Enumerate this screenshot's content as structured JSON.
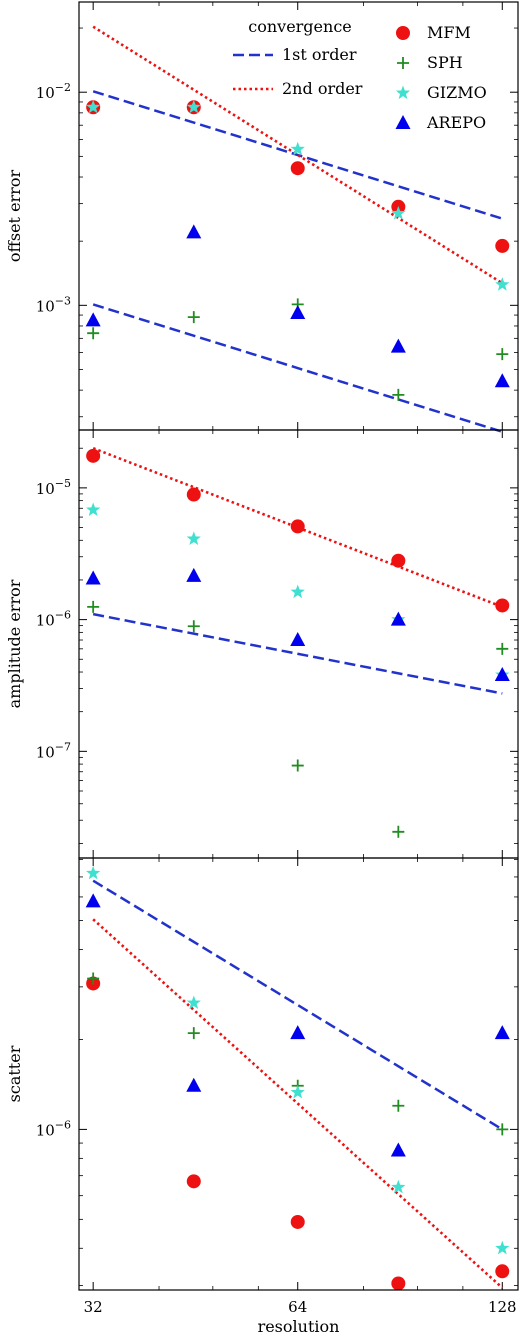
{
  "chart_data": [
    {
      "type": "scatter",
      "panel": "top",
      "ylabel": "offset error",
      "yscale": "log",
      "ylim": [
        0.00026,
        0.0265
      ],
      "xscale": "log2",
      "xlim": [
        30.5,
        135
      ],
      "ytick_labels": [
        {
          "value": 0.01,
          "base": "10",
          "exp": "−2"
        },
        {
          "value": 0.001,
          "base": "10",
          "exp": "−3"
        }
      ],
      "series": [
        {
          "name": "MFM",
          "marker": "circle",
          "color": "#ee1111",
          "points": [
            [
              32,
              0.0085
            ],
            [
              45,
              0.0085
            ],
            [
              64,
              0.0044
            ],
            [
              90,
              0.0029
            ],
            [
              128,
              0.0019
            ]
          ]
        },
        {
          "name": "SPH",
          "marker": "plus",
          "color": "#228b22",
          "points": [
            [
              32,
              0.00074
            ],
            [
              45,
              0.00088
            ],
            [
              64,
              0.00101
            ],
            [
              90,
              0.00038
            ],
            [
              128,
              0.00059
            ]
          ]
        },
        {
          "name": "GIZMO",
          "marker": "star",
          "color": "#40e0d0",
          "points": [
            [
              32,
              0.0085
            ],
            [
              45,
              0.0085
            ],
            [
              64,
              0.0054
            ],
            [
              90,
              0.0027
            ],
            [
              128,
              0.00125
            ]
          ]
        },
        {
          "name": "AREPO",
          "marker": "triangle",
          "color": "#0000ee",
          "points": [
            [
              32,
              0.00085
            ],
            [
              45,
              0.0022
            ],
            [
              64,
              0.00092
            ],
            [
              90,
              0.00064
            ],
            [
              128,
              0.00044
            ]
          ]
        }
      ],
      "lines": [
        {
          "kind": "1st order",
          "style": "dashed",
          "color": "#2233cc",
          "points": [
            [
              32,
              0.0101
            ],
            [
              128,
              0.00255
            ]
          ]
        },
        {
          "kind": "1st order",
          "style": "dashed",
          "color": "#2233cc",
          "points": [
            [
              32,
              0.00101
            ],
            [
              128,
              0.000255
            ]
          ]
        },
        {
          "kind": "2nd order",
          "style": "dotted",
          "color": "#ee1111",
          "points": [
            [
              32,
              0.0203
            ],
            [
              128,
              0.00127
            ]
          ]
        }
      ],
      "legend": {
        "position": "top-right",
        "title": "convergence",
        "line_entries": [
          {
            "label": "1st order",
            "style": "dashed",
            "color": "#2233cc"
          },
          {
            "label": "2nd order",
            "style": "dotted",
            "color": "#ee1111"
          }
        ],
        "marker_entries": [
          {
            "label": "MFM",
            "marker": "circle",
            "color": "#ee1111"
          },
          {
            "label": "SPH",
            "marker": "plus",
            "color": "#228b22"
          },
          {
            "label": "GIZMO",
            "marker": "star",
            "color": "#40e0d0"
          },
          {
            "label": "AREPO",
            "marker": "triangle",
            "color": "#0000ee"
          }
        ]
      }
    },
    {
      "type": "scatter",
      "panel": "middle",
      "ylabel": "amplitude error",
      "yscale": "log",
      "ylim": [
        1.55e-08,
        2.75e-05
      ],
      "xscale": "log2",
      "xlim": [
        30.5,
        135
      ],
      "ytick_labels": [
        {
          "value": 1e-05,
          "base": "10",
          "exp": "−5"
        },
        {
          "value": 1e-06,
          "base": "10",
          "exp": "−6"
        },
        {
          "value": 1e-07,
          "base": "10",
          "exp": "−7"
        }
      ],
      "series": [
        {
          "name": "MFM",
          "marker": "circle",
          "color": "#ee1111",
          "points": [
            [
              32,
              1.75e-05
            ],
            [
              45,
              8.9e-06
            ],
            [
              64,
              5.1e-06
            ],
            [
              90,
              2.8e-06
            ],
            [
              128,
              1.28e-06
            ]
          ]
        },
        {
          "name": "SPH",
          "marker": "plus",
          "color": "#228b22",
          "points": [
            [
              32,
              1.25e-06
            ],
            [
              45,
              8.9e-07
            ],
            [
              64,
              7.8e-08
            ],
            [
              90,
              2.45e-08
            ],
            [
              128,
              6e-07
            ]
          ]
        },
        {
          "name": "GIZMO",
          "marker": "star",
          "color": "#40e0d0",
          "points": [
            [
              32,
              6.8e-06
            ],
            [
              45,
              4.1e-06
            ],
            [
              64,
              1.62e-06
            ],
            [
              90,
              1e-06
            ],
            [
              128,
              3.8e-07
            ]
          ]
        },
        {
          "name": "AREPO",
          "marker": "triangle",
          "color": "#0000ee",
          "points": [
            [
              32,
              2.05e-06
            ],
            [
              45,
              2.15e-06
            ],
            [
              64,
              7e-07
            ],
            [
              90,
              1e-06
            ],
            [
              128,
              3.8e-07
            ]
          ]
        }
      ],
      "lines": [
        {
          "kind": "1st order",
          "style": "dashed",
          "color": "#2233cc",
          "points": [
            [
              32,
              1.1e-06
            ],
            [
              128,
              2.75e-07
            ]
          ]
        },
        {
          "kind": "2nd order",
          "style": "dotted",
          "color": "#ee1111",
          "points": [
            [
              32,
              2e-05
            ],
            [
              128,
              1.25e-06
            ]
          ]
        }
      ]
    },
    {
      "type": "scatter",
      "panel": "bottom",
      "ylabel": "scatter",
      "xlabel": "resolution",
      "yscale": "log",
      "ylim": [
        2.9e-07,
        8.1e-06
      ],
      "xscale": "log2",
      "xlim": [
        30.5,
        135
      ],
      "xticks": [
        32,
        64,
        128
      ],
      "xtick_labels": [
        "32",
        "64",
        "128"
      ],
      "ytick_labels": [
        {
          "value": 1e-06,
          "base": "10",
          "exp": "−6"
        }
      ],
      "series": [
        {
          "name": "MFM",
          "marker": "circle",
          "color": "#ee1111",
          "points": [
            [
              32,
              3.08e-06
            ],
            [
              45,
              6.7e-07
            ],
            [
              64,
              4.9e-07
            ],
            [
              90,
              3.05e-07
            ],
            [
              128,
              3.35e-07
            ]
          ]
        },
        {
          "name": "SPH",
          "marker": "plus",
          "color": "#228b22",
          "points": [
            [
              32,
              3.2e-06
            ],
            [
              45,
              2.1e-06
            ],
            [
              64,
              1.4e-06
            ],
            [
              90,
              1.2e-06
            ],
            [
              128,
              1e-06
            ]
          ]
        },
        {
          "name": "GIZMO",
          "marker": "star",
          "color": "#40e0d0",
          "points": [
            [
              32,
              7.2e-06
            ],
            [
              45,
              2.65e-06
            ],
            [
              64,
              1.33e-06
            ],
            [
              90,
              6.4e-07
            ],
            [
              128,
              4e-07
            ]
          ]
        },
        {
          "name": "AREPO",
          "marker": "triangle",
          "color": "#0000ee",
          "points": [
            [
              32,
              5.8e-06
            ],
            [
              45,
              1.4e-06
            ],
            [
              64,
              2.1e-06
            ],
            [
              90,
              8.5e-07
            ],
            [
              128,
              2.1e-06
            ]
          ]
        }
      ],
      "lines": [
        {
          "kind": "1st order",
          "style": "dashed",
          "color": "#2233cc",
          "points": [
            [
              32,
              6.8e-06
            ],
            [
              128,
              1e-06
            ]
          ]
        },
        {
          "kind": "2nd order",
          "style": "dotted",
          "color": "#ee1111",
          "points": [
            [
              32,
              5.05e-06
            ],
            [
              128,
              2.95e-07
            ]
          ]
        }
      ]
    }
  ]
}
